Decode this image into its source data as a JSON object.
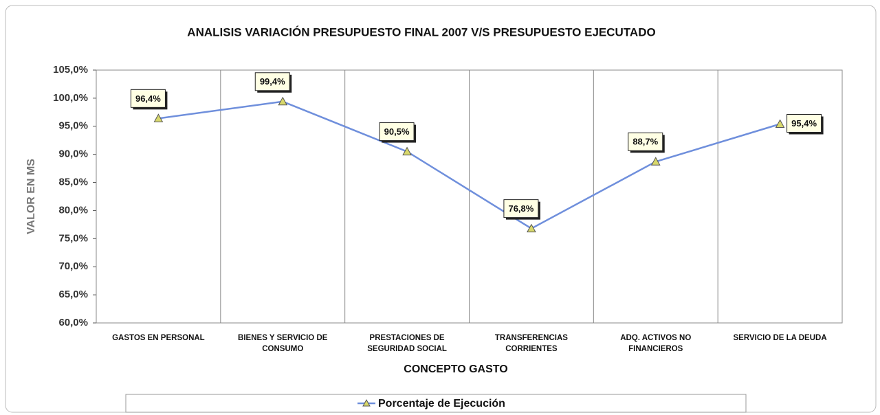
{
  "chart_data": {
    "type": "line",
    "title": "ANALISIS VARIACIÓN PRESUPUESTO FINAL 2007 V/S PRESUPUESTO EJECUTADO",
    "x_label": "CONCEPTO GASTO",
    "y_label": "VALOR EN MS",
    "categories": [
      "GASTOS EN PERSONAL",
      "BIENES Y SERVICIO DE CONSUMO",
      "PRESTACIONES DE SEGURIDAD SOCIAL",
      "TRANSFERENCIAS CORRIENTES",
      "ADQ. ACTIVOS NO FINANCIEROS",
      "SERVICIO DE LA DEUDA"
    ],
    "series": [
      {
        "name": "Porcentaje de Ejecución",
        "color": "#6f8fdc",
        "marker_color": "#d8d86c",
        "values": [
          96.4,
          99.4,
          90.5,
          76.8,
          88.7,
          95.4
        ],
        "value_labels": [
          "96,4%",
          "99,4%",
          "90,5%",
          "76,8%",
          "88,7%",
          "95,4%"
        ]
      }
    ],
    "ylim": [
      60,
      105
    ],
    "yticks": [
      {
        "value": 60,
        "label": "60,0%"
      },
      {
        "value": 65,
        "label": "65,0%"
      },
      {
        "value": 70,
        "label": "70,0%"
      },
      {
        "value": 75,
        "label": "75,0%"
      },
      {
        "value": 80,
        "label": "80,0%"
      },
      {
        "value": 85,
        "label": "85,0%"
      },
      {
        "value": 90,
        "label": "90,0%"
      },
      {
        "value": 95,
        "label": "95,0%"
      },
      {
        "value": 100,
        "label": "100,0%"
      },
      {
        "value": 105,
        "label": "105,0%"
      }
    ],
    "grid": false,
    "legend": "bottom"
  }
}
